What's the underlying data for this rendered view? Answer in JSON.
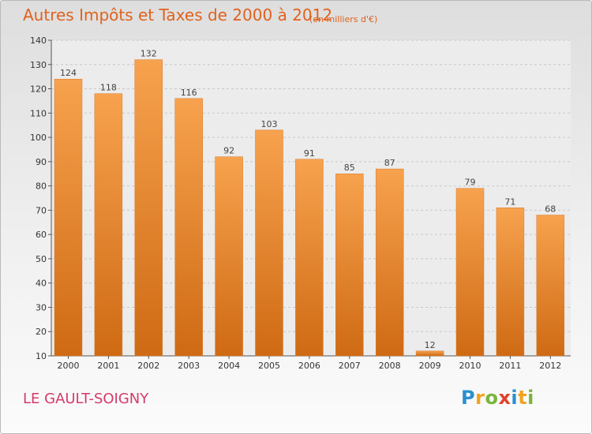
{
  "chart_data": {
    "type": "bar",
    "title": "Autres Impôts et Taxes de 2000 à 2012",
    "subtitle": "(en milliers d'€)",
    "categories": [
      "2000",
      "2001",
      "2002",
      "2003",
      "2004",
      "2005",
      "2006",
      "2007",
      "2008",
      "2009",
      "2010",
      "2011",
      "2012"
    ],
    "values": [
      124,
      118,
      132,
      116,
      92,
      103,
      91,
      85,
      87,
      12,
      79,
      71,
      68
    ],
    "data_labels": [
      "124",
      "118",
      "132",
      "116",
      "92",
      "103",
      "91",
      "85",
      "87",
      "12",
      "79",
      "71",
      "68"
    ],
    "ylim": [
      10,
      140
    ],
    "yticks": [
      10,
      20,
      30,
      40,
      50,
      60,
      70,
      80,
      90,
      100,
      110,
      120,
      130,
      140
    ],
    "ytick_labels": [
      "10",
      "20",
      "30",
      "40",
      "50",
      "60",
      "70",
      "80",
      "90",
      "100",
      "110",
      "120",
      "130",
      "140"
    ],
    "grid": "horizontal dashed",
    "xlabel": "",
    "ylabel": "",
    "bar_color_top": "#f7a24e",
    "bar_color_bottom": "#cf6a14"
  },
  "footer": {
    "commune": "LE GAULT-SOIGNY"
  },
  "logo": {
    "letters": [
      "P",
      "r",
      "o",
      "x",
      "i",
      "t",
      "i"
    ],
    "colors": [
      "#2a8fd0",
      "#f2a21d",
      "#78b63b",
      "#e2402c",
      "#2a8fd0",
      "#f2a21d",
      "#78b63b"
    ]
  }
}
